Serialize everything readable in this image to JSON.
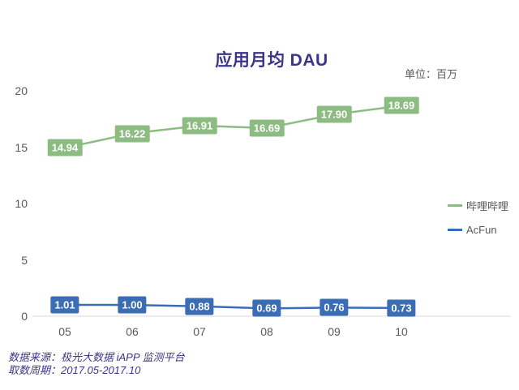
{
  "footer": {
    "source_line": "数据来源：极光大数据 iAPP 监测平台",
    "period_line": "取数周期：2017.05-2017.10"
  },
  "chart_data": {
    "type": "line",
    "title": "应用月均 DAU",
    "unit_label": "单位：百万",
    "xlabel": "",
    "ylabel": "",
    "categories": [
      "05",
      "06",
      "07",
      "08",
      "09",
      "10"
    ],
    "series": [
      {
        "name": "哔哩哔哩",
        "color": "#8dbc83",
        "values": [
          14.94,
          16.22,
          16.91,
          16.69,
          17.9,
          18.69
        ],
        "labels": [
          "14.94",
          "16.22",
          "16.91",
          "16.69",
          "17.90",
          "18.69"
        ]
      },
      {
        "name": "AcFun",
        "color": "#3a6db4",
        "values": [
          1.01,
          1.0,
          0.88,
          0.69,
          0.76,
          0.73
        ],
        "labels": [
          "1.01",
          "1.00",
          "0.88",
          "0.69",
          "0.76",
          "0.73"
        ]
      }
    ],
    "ylim": [
      0,
      20
    ],
    "yticks": [
      0,
      5,
      10,
      15,
      20
    ],
    "grid": false,
    "data_labels": true,
    "legend_position": "right",
    "axis_line_color": "#d9d9d9",
    "tick_color": "#595959",
    "title_color": "#3b3589"
  }
}
